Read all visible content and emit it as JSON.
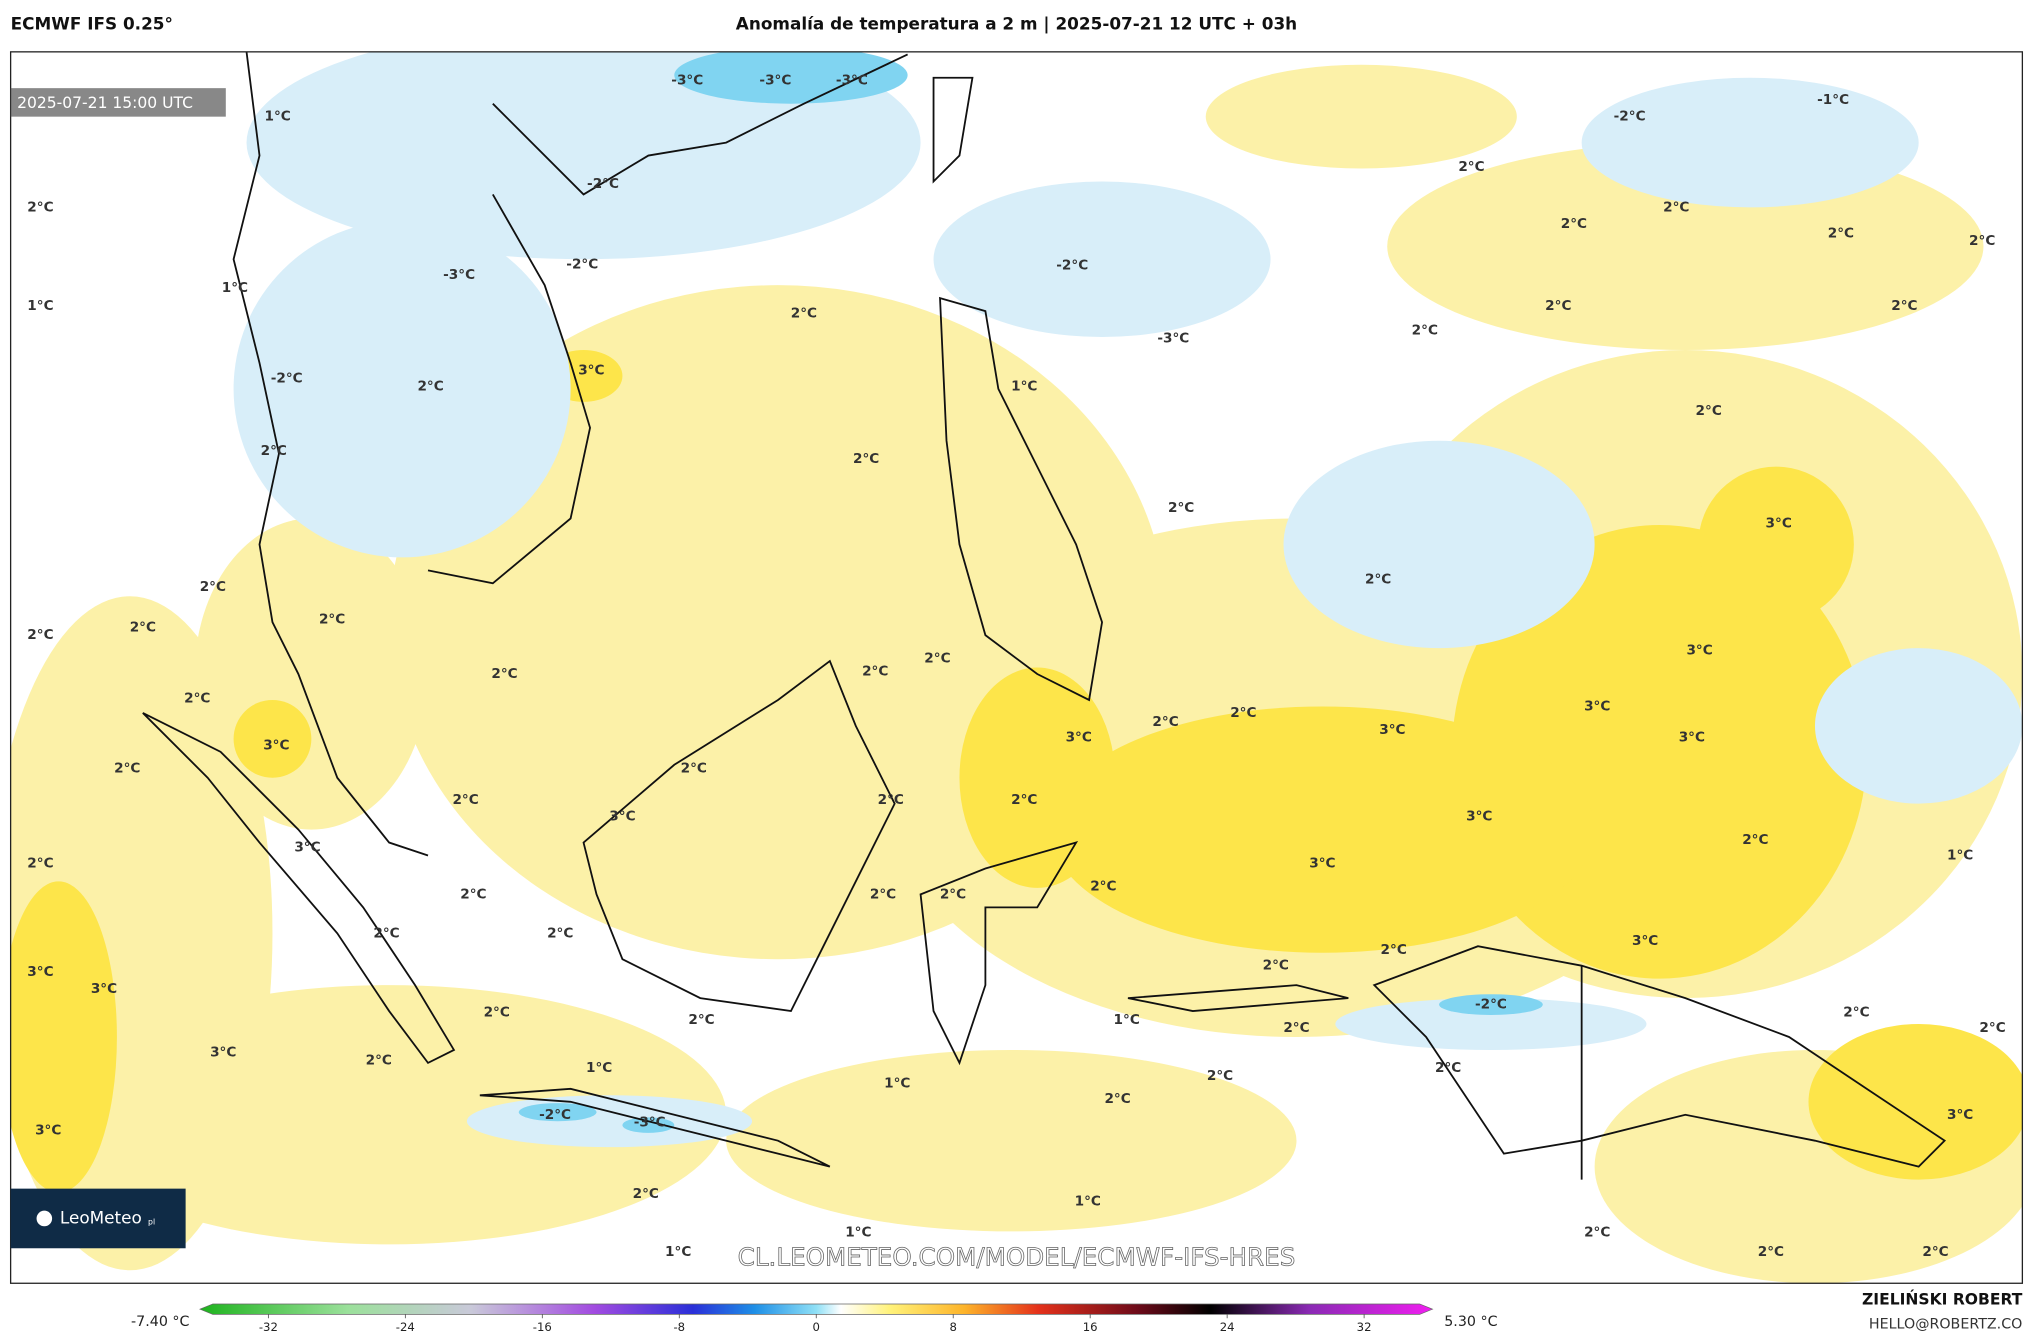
{
  "header": {
    "model": "ECMWF IFS 0.25°",
    "title": "Anomalía de temperatura a 2 m | 2025-07-21 12 UTC + 03h"
  },
  "map": {
    "valid_time": "2025-07-21 15:00 UTC",
    "labels": [
      "-3°C",
      "-3°C",
      "-3°C",
      "1°C",
      "-1°C",
      "-2°C",
      "-2°C",
      "2°C",
      "2°C",
      "2°C",
      "2°C",
      "2°C",
      "2°C",
      "-3°C",
      "-2°C",
      "-2°C",
      "1°C",
      "1°C",
      "2°C",
      "2°C",
      "2°C",
      "2°C",
      "-3°C",
      "3°C",
      "-2°C",
      "2°C",
      "1°C",
      "2°C",
      "2°C",
      "2°C",
      "2°C",
      "3°C",
      "2°C",
      "2°C",
      "2°C",
      "2°C",
      "2°C",
      "3°C",
      "2°C",
      "2°C",
      "2°C",
      "2°C",
      "3°C",
      "2°C",
      "2°C",
      "3°C",
      "3°C",
      "3°C",
      "3°C",
      "2°C",
      "2°C",
      "2°C",
      "2°C",
      "2°C",
      "3°C",
      "3°C",
      "2°C",
      "2°C",
      "3°C",
      "3°C",
      "1°C",
      "2°C",
      "2°C",
      "2°C",
      "2°C",
      "2°C",
      "2°C",
      "3°C",
      "2°C",
      "2°C",
      "3°C",
      "3°C",
      "-2°C",
      "2°C",
      "2°C",
      "1°C",
      "2°C",
      "2°C",
      "2°C",
      "3°C",
      "2°C",
      "1°C",
      "2°C",
      "1°C",
      "2°C",
      "2°C",
      "-2°C",
      "3°C",
      "3°C",
      "-3°C",
      "2°C",
      "1°C",
      "1°C",
      "2°C",
      "1°C",
      "2°C",
      "2°C"
    ],
    "logo": "LeoMeteo",
    "logo_suffix": "pl",
    "watermark": "CL.LEOMETEO.COM/MODEL/ECMWF-IFS-HRES"
  },
  "colorbar": {
    "min_label": "-7.40 °C",
    "max_label": "5.30 °C",
    "lim": [
      -36,
      36
    ],
    "ticks": [
      -32,
      -24,
      -16,
      -8,
      0,
      8,
      16,
      24,
      32
    ]
  },
  "credits": {
    "author": "ZIELIŃSKI ROBERT",
    "email": "HELLO@ROBERTZ.CO"
  }
}
